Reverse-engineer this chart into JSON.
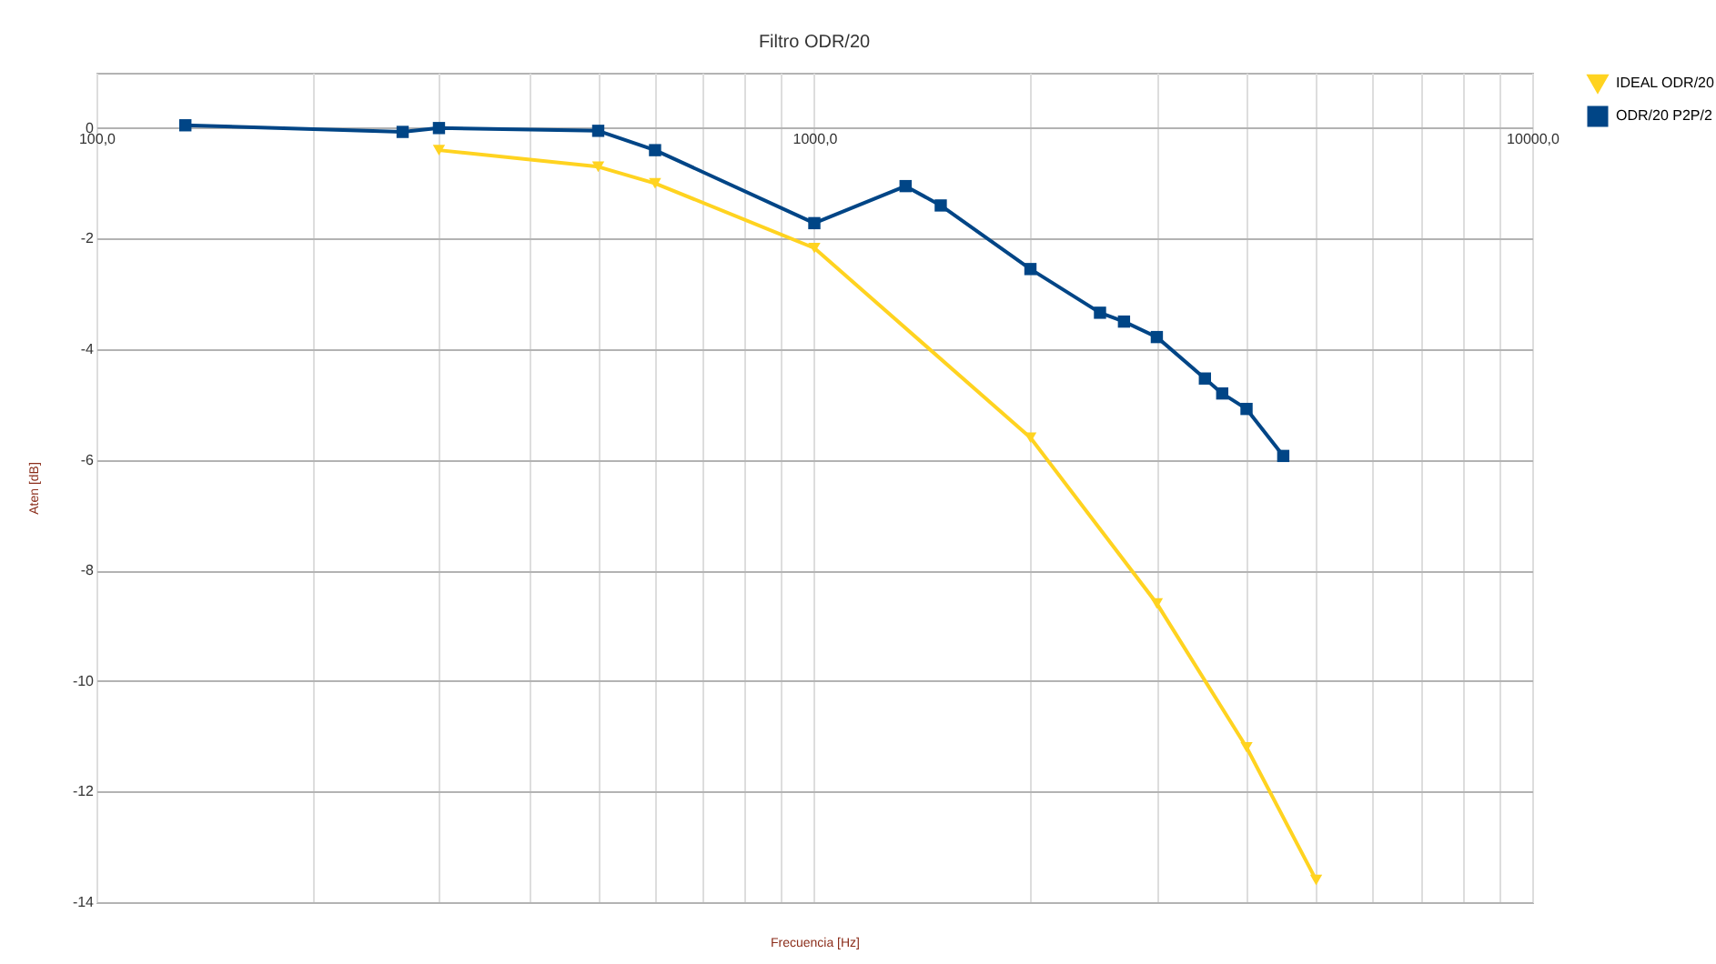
{
  "chart_data": {
    "type": "line",
    "title": "Filtro ODR/20",
    "xlabel": "Frecuencia [Hz]",
    "ylabel": "Aten [dB]",
    "log": "x",
    "grid": true,
    "legend": "right",
    "xlim": [
      100,
      10000
    ],
    "xticks": [
      {
        "value": 100,
        "label": "100,0"
      },
      {
        "value": 200,
        "label": null
      },
      {
        "value": 300,
        "label": null
      },
      {
        "value": 400,
        "label": null
      },
      {
        "value": 500,
        "label": null
      },
      {
        "value": 600,
        "label": null
      },
      {
        "value": 700,
        "label": null
      },
      {
        "value": 800,
        "label": null
      },
      {
        "value": 900,
        "label": null
      },
      {
        "value": 1000,
        "label": "1000,0"
      },
      {
        "value": 2000,
        "label": null
      },
      {
        "value": 3000,
        "label": null
      },
      {
        "value": 4000,
        "label": null
      },
      {
        "value": 5000,
        "label": null
      },
      {
        "value": 6000,
        "label": null
      },
      {
        "value": 7000,
        "label": null
      },
      {
        "value": 8000,
        "label": null
      },
      {
        "value": 9000,
        "label": null
      },
      {
        "value": 10000,
        "label": "10000,0"
      }
    ],
    "ylim": [
      -14,
      1
    ],
    "yticks": [
      -14,
      -12,
      -10,
      -8,
      -6,
      -4,
      -2,
      0
    ],
    "series": [
      {
        "name": "IDEAL ODR/20",
        "color": "#ffd320",
        "marker": "triangle",
        "x": [
          300,
          500,
          600,
          1000,
          2000,
          3000,
          4000,
          5000
        ],
        "values": [
          -0.4,
          -0.7,
          -1.0,
          -2.17,
          -5.6,
          -8.6,
          -11.2,
          -13.6
        ]
      },
      {
        "name": "ODR/20 P2P/2",
        "color": "#004586",
        "marker": "square",
        "x": [
          133,
          267,
          300,
          500,
          600,
          1000,
          1340,
          1500,
          2000,
          2500,
          2700,
          3000,
          3500,
          3700,
          4000,
          4500
        ],
        "values": [
          0.05,
          -0.07,
          0.0,
          -0.05,
          -0.4,
          -1.72,
          -1.05,
          -1.4,
          -2.55,
          -3.34,
          -3.5,
          -3.78,
          -4.53,
          -4.8,
          -5.08,
          -5.93
        ]
      }
    ]
  }
}
